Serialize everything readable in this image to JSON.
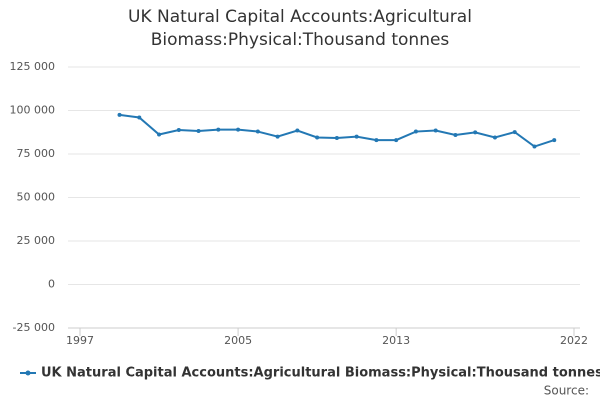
{
  "chart_data": {
    "type": "line",
    "title": "UK Natural Capital Accounts:Agricultural Biomass:Physical:Thousand tonnes",
    "x": [
      1999,
      2000,
      2001,
      2002,
      2003,
      2004,
      2005,
      2006,
      2007,
      2008,
      2009,
      2010,
      2011,
      2012,
      2013,
      2014,
      2015,
      2016,
      2017,
      2018,
      2019,
      2020,
      2021
    ],
    "series": [
      {
        "name": "UK Natural Capital Accounts:Agricultural Biomass:Physical:Thousand tonnes",
        "color": "#2378b4",
        "values": [
          97500,
          96000,
          86200,
          88800,
          88200,
          89000,
          89000,
          87900,
          85000,
          88500,
          84500,
          84200,
          85000,
          83000,
          83000,
          87900,
          88500,
          85900,
          87400,
          84500,
          87600,
          79300,
          83000
        ]
      }
    ],
    "xlim": [
      1997,
      2022
    ],
    "xticks": [
      1997,
      2005,
      2013,
      2022
    ],
    "ylim": [
      -25000,
      125000
    ],
    "yticks": [
      {
        "value": -25000,
        "label": "-25 000"
      },
      0,
      {
        "value": 25000,
        "label": "25 000"
      },
      {
        "value": 50000,
        "label": "50 000"
      },
      {
        "value": 75000,
        "label": "75 000"
      },
      {
        "value": 100000,
        "label": "100 000"
      },
      {
        "value": 125000,
        "label": "125 000"
      }
    ],
    "grid": true,
    "legend": "bottom",
    "source": "Source:"
  }
}
